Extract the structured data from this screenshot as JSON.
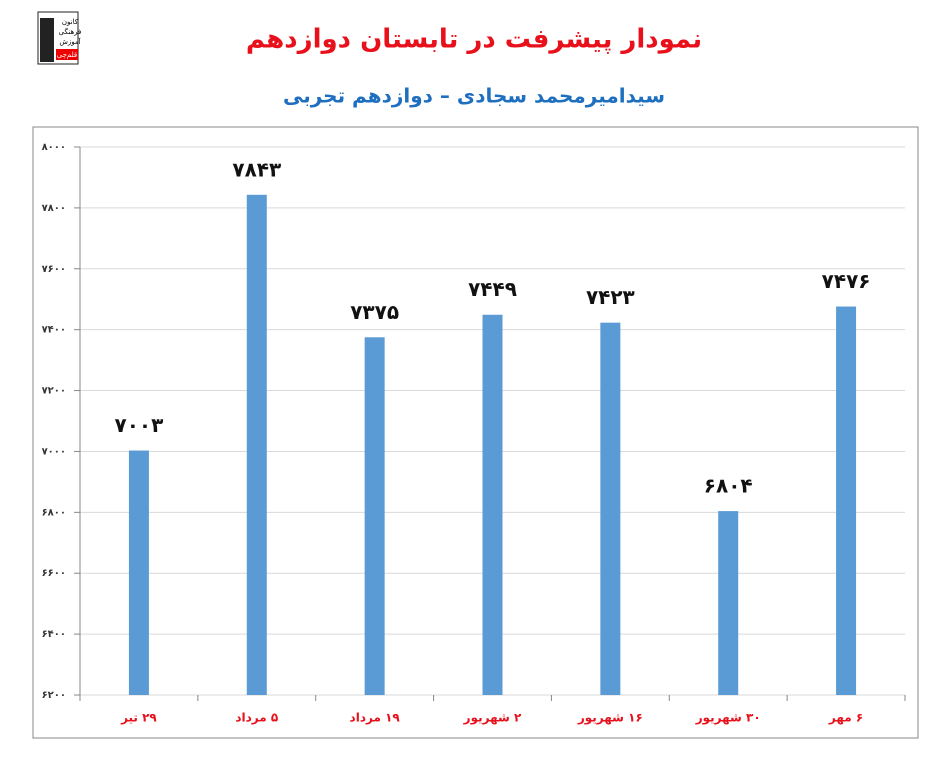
{
  "chart_data": {
    "type": "bar",
    "title": "نمودار پیشرفت در تابستان دوازدهم",
    "subtitle": "سیدامیرمحمد سجادی – دوازدهم تجربی",
    "categories": [
      "۲۹ تیر",
      "۵ مرداد",
      "۱۹ مرداد",
      "۲ شهریور",
      "۱۶ شهریور",
      "۳۰ شهریور",
      "۶ مهر"
    ],
    "values": [
      7003,
      7843,
      7375,
      7449,
      7423,
      6804,
      7476
    ],
    "value_labels": [
      "۷۰۰۳",
      "۷۸۴۳",
      "۷۳۷۵",
      "۷۴۴۹",
      "۷۴۲۳",
      "۶۸۰۴",
      "۷۴۷۶"
    ],
    "color": "#5b9bd5",
    "ylim": [
      6200,
      8000
    ],
    "yticks": [
      {
        "value": 6200,
        "label": "۶۲۰۰"
      },
      {
        "value": 6400,
        "label": "۶۴۰۰"
      },
      {
        "value": 6600,
        "label": "۶۶۰۰"
      },
      {
        "value": 6800,
        "label": "۶۸۰۰"
      },
      {
        "value": 7000,
        "label": "۷۰۰۰"
      },
      {
        "value": 7200,
        "label": "۷۲۰۰"
      },
      {
        "value": 7400,
        "label": "۷۴۰۰"
      },
      {
        "value": 7600,
        "label": "۷۶۰۰"
      },
      {
        "value": 7800,
        "label": "۷۸۰۰"
      },
      {
        "value": 8000,
        "label": "۸۰۰۰"
      }
    ],
    "grid": true
  },
  "logo": {
    "lines": [
      "کانون",
      "فرهنگی",
      "آموزش",
      "قلم‌چی"
    ]
  }
}
